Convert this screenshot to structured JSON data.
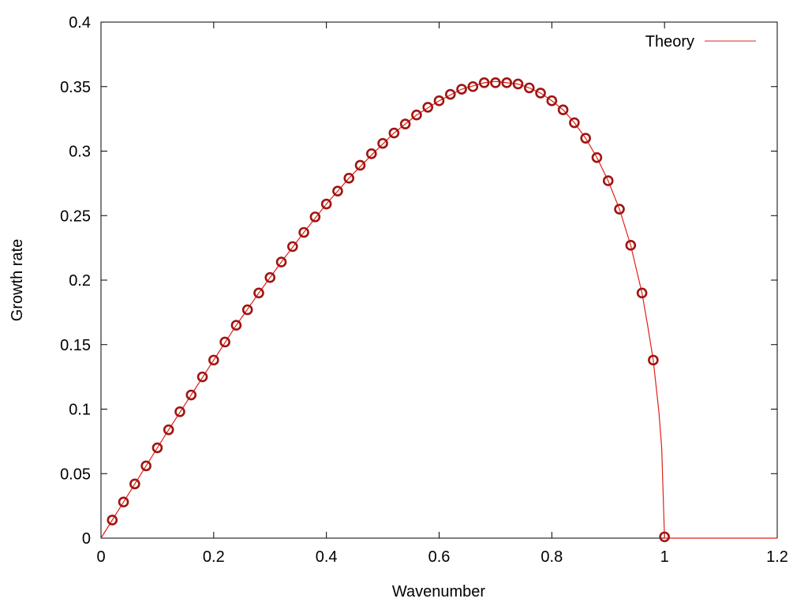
{
  "chart_data": {
    "type": "line",
    "xlabel": "Wavenumber",
    "ylabel": "Growth rate",
    "xlim": [
      0,
      1.2
    ],
    "ylim": [
      0,
      0.4
    ],
    "x_ticks": [
      "0",
      "0.2",
      "0.4",
      "0.6",
      "0.8",
      "1",
      "1.2"
    ],
    "y_ticks": [
      "0",
      "0.05",
      "0.1",
      "0.15",
      "0.2",
      "0.25",
      "0.3",
      "0.35",
      "0.4"
    ],
    "grid": false,
    "legend_position": "top-right",
    "legend": [
      "Theory"
    ],
    "colors": {
      "theory_line": "#e0201b",
      "markers": "#a01410",
      "axes": "#000000"
    },
    "series": [
      {
        "name": "Theory",
        "type": "line",
        "x": [
          0,
          0.04,
          0.08,
          0.12,
          0.16,
          0.2,
          0.24,
          0.28,
          0.32,
          0.36,
          0.4,
          0.44,
          0.48,
          0.52,
          0.56,
          0.6,
          0.64,
          0.68,
          0.7,
          0.72,
          0.74,
          0.76,
          0.78,
          0.8,
          0.82,
          0.84,
          0.86,
          0.88,
          0.9,
          0.92,
          0.94,
          0.96,
          0.97,
          0.98,
          0.99,
          0.995,
          1.0,
          1.2
        ],
        "y": [
          0,
          0.028,
          0.056,
          0.084,
          0.111,
          0.138,
          0.165,
          0.19,
          0.214,
          0.237,
          0.259,
          0.279,
          0.297,
          0.314,
          0.328,
          0.339,
          0.348,
          0.353,
          0.354,
          0.353,
          0.352,
          0.349,
          0.345,
          0.339,
          0.332,
          0.322,
          0.31,
          0.295,
          0.277,
          0.255,
          0.227,
          0.19,
          0.165,
          0.138,
          0.098,
          0.07,
          0,
          0
        ]
      },
      {
        "type": "scatter",
        "marker": "open-circle",
        "x": [
          0.02,
          0.04,
          0.06,
          0.08,
          0.1,
          0.12,
          0.14,
          0.16,
          0.18,
          0.2,
          0.22,
          0.24,
          0.26,
          0.28,
          0.3,
          0.32,
          0.34,
          0.36,
          0.38,
          0.4,
          0.42,
          0.44,
          0.46,
          0.48,
          0.5,
          0.52,
          0.54,
          0.56,
          0.58,
          0.6,
          0.62,
          0.64,
          0.66,
          0.68,
          0.7,
          0.72,
          0.74,
          0.76,
          0.78,
          0.8,
          0.82,
          0.84,
          0.86,
          0.88,
          0.9,
          0.92,
          0.94,
          0.96,
          0.98,
          1.0
        ],
        "y": [
          0.014,
          0.028,
          0.042,
          0.056,
          0.07,
          0.084,
          0.098,
          0.111,
          0.125,
          0.138,
          0.152,
          0.165,
          0.177,
          0.19,
          0.202,
          0.214,
          0.226,
          0.237,
          0.249,
          0.259,
          0.269,
          0.279,
          0.289,
          0.298,
          0.306,
          0.314,
          0.321,
          0.328,
          0.334,
          0.339,
          0.344,
          0.348,
          0.35,
          0.353,
          0.353,
          0.353,
          0.352,
          0.349,
          0.345,
          0.339,
          0.332,
          0.322,
          0.31,
          0.295,
          0.277,
          0.255,
          0.227,
          0.19,
          0.138,
          0.001
        ]
      }
    ]
  }
}
